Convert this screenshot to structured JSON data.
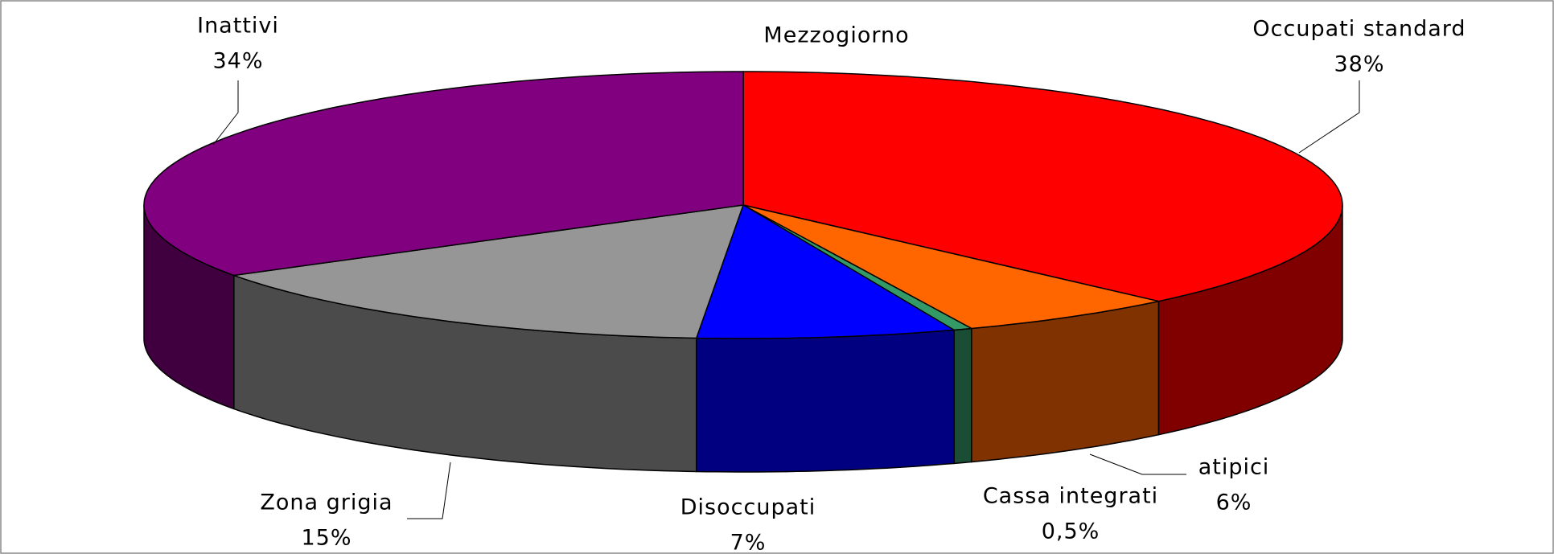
{
  "chart_data": {
    "type": "pie",
    "title": "Mezzogiorno",
    "categories": [
      "Occupati standard",
      "atipici",
      "Cassa integrati",
      "Disoccupati",
      "Zona grigia",
      "Inattivi"
    ],
    "values": [
      38,
      6,
      0.5,
      7,
      15,
      34
    ],
    "value_labels": [
      "38%",
      "6%",
      "0,5%",
      "7%",
      "15%",
      "34%"
    ],
    "colors": [
      "#ff0000",
      "#ff6600",
      "#339966",
      "#0000ff",
      "#969696",
      "#800080"
    ]
  }
}
